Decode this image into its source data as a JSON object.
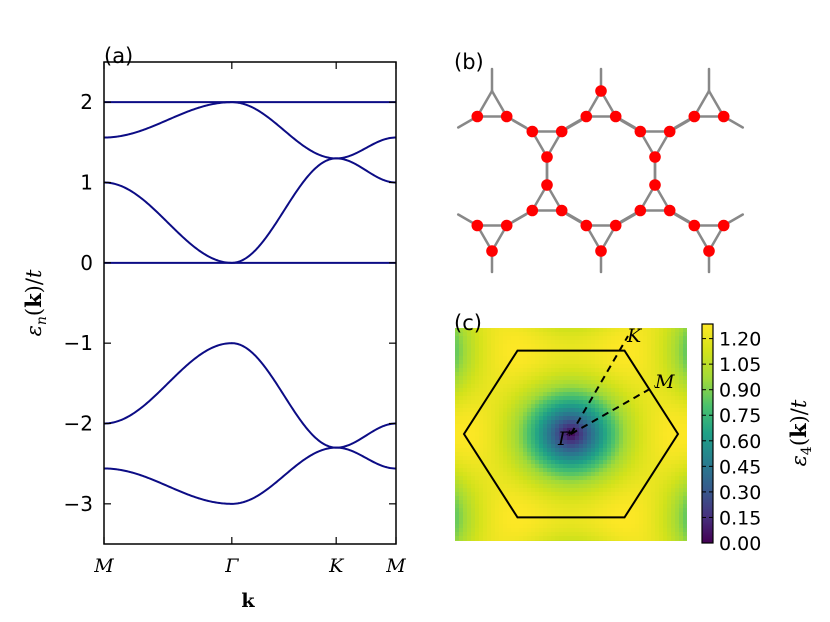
{
  "panels": {
    "a": "(a)",
    "b": "(b)",
    "c": "(c)"
  },
  "chart_data": [
    {
      "type": "line",
      "panel": "(a)",
      "xlabel": "k",
      "ylabel": "εn(k)/t",
      "ylim": [
        -3.5,
        2.5
      ],
      "yticks": [
        2,
        1,
        0,
        -1,
        -2,
        -3
      ],
      "ytick_labels": [
        "2",
        "1",
        "0",
        "−1",
        "−2",
        "−3"
      ],
      "xticks": [
        "M",
        "Γ",
        "K",
        "M"
      ],
      "x": [
        0,
        1,
        1.8165,
        2.2845
      ],
      "color": "#0c0c85",
      "series": [
        {
          "values_at_ticks": [
            2,
            2,
            2,
            2
          ]
        },
        {
          "values_at_ticks": [
            1.56,
            2,
            1.3,
            1.56
          ]
        },
        {
          "values_at_ticks": [
            1,
            0,
            1.3,
            1
          ]
        },
        {
          "values_at_ticks": [
            0,
            0,
            0,
            0
          ]
        },
        {
          "values_at_ticks": [
            -2,
            -1,
            -2.3,
            -2
          ]
        },
        {
          "values_at_ticks": [
            -2.56,
            -3,
            -2.3,
            -2.56
          ]
        }
      ]
    },
    {
      "type": "diagram",
      "panel": "(b)",
      "description_kind": "star lattice",
      "line_color": "#888888",
      "site_color": "#ff0000"
    },
    {
      "type": "heatmap",
      "panel": "(c)",
      "colormap": "viridis",
      "colorbar_label": "ε4(k)/t",
      "colorbar_range": [
        0.0,
        1.2857
      ],
      "colorbar_ticks": [
        "1.20",
        "1.05",
        "0.90",
        "0.75",
        "0.60",
        "0.45",
        "0.30",
        "0.15",
        "0.00"
      ],
      "points": [
        "Γ",
        "K",
        "M"
      ]
    }
  ]
}
